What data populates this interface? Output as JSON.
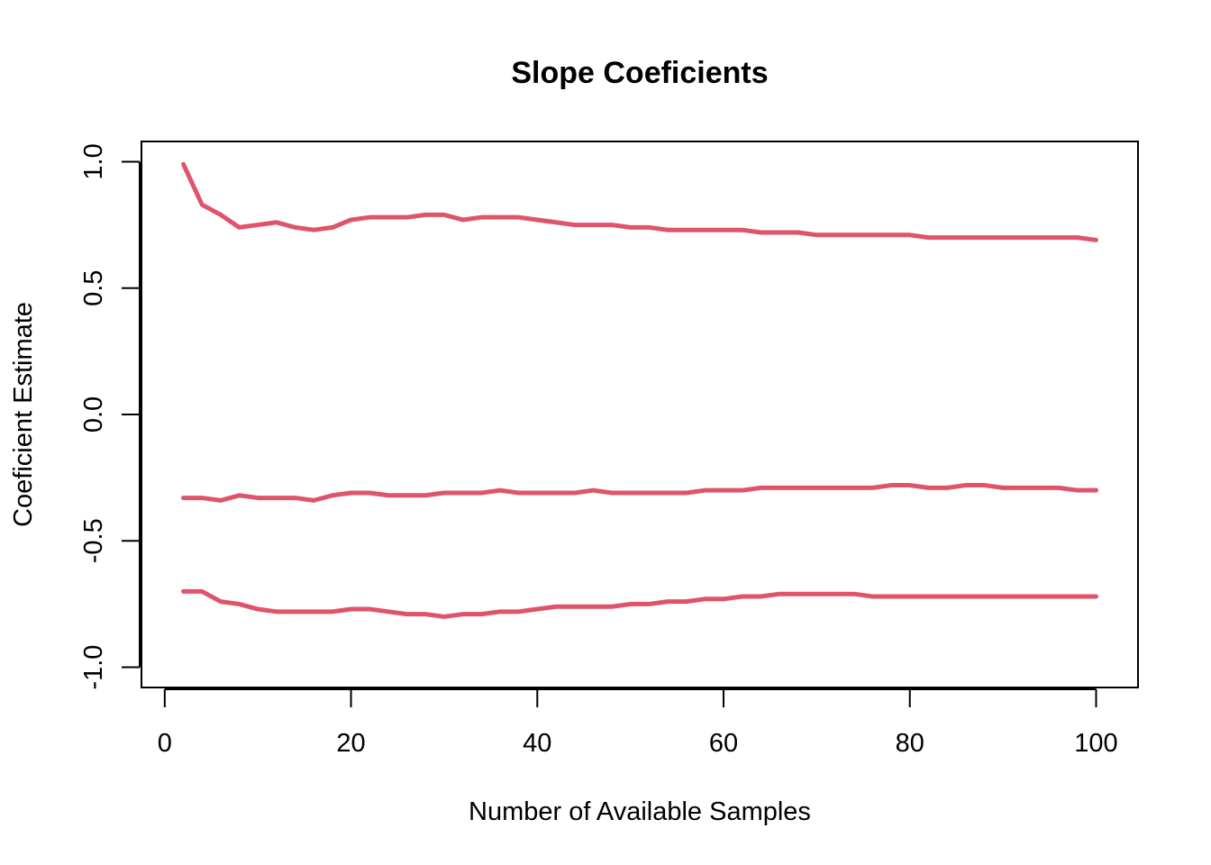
{
  "chart_data": {
    "type": "line",
    "title": "Slope Coeficients",
    "xlabel": "Number of Available Samples",
    "ylabel": "Coeficient Estimate",
    "xlim": [
      -2.5,
      104.5
    ],
    "ylim": [
      -1.08,
      1.08
    ],
    "x_ticks": [
      0,
      20,
      40,
      60,
      80,
      100
    ],
    "x_tick_labels": [
      "0",
      "20",
      "40",
      "60",
      "80",
      "100"
    ],
    "y_ticks": [
      -1.0,
      -0.5,
      0.0,
      0.5,
      1.0
    ],
    "y_tick_labels": [
      "-1.0",
      "-0.5",
      "0.0",
      "0.5",
      "1.0"
    ],
    "grid": false,
    "line_color": "#DF536B",
    "x": [
      2,
      4,
      6,
      8,
      10,
      12,
      14,
      16,
      18,
      20,
      22,
      24,
      26,
      28,
      30,
      32,
      34,
      36,
      38,
      40,
      42,
      44,
      46,
      48,
      50,
      52,
      54,
      56,
      58,
      60,
      62,
      64,
      66,
      68,
      70,
      72,
      74,
      76,
      78,
      80,
      82,
      84,
      86,
      88,
      90,
      92,
      94,
      96,
      98,
      100
    ],
    "series": [
      {
        "values": [
          0.99,
          0.83,
          0.79,
          0.74,
          0.75,
          0.76,
          0.74,
          0.73,
          0.74,
          0.77,
          0.78,
          0.78,
          0.78,
          0.79,
          0.79,
          0.77,
          0.78,
          0.78,
          0.78,
          0.77,
          0.76,
          0.75,
          0.75,
          0.75,
          0.74,
          0.74,
          0.73,
          0.73,
          0.73,
          0.73,
          0.73,
          0.72,
          0.72,
          0.72,
          0.71,
          0.71,
          0.71,
          0.71,
          0.71,
          0.71,
          0.7,
          0.7,
          0.7,
          0.7,
          0.7,
          0.7,
          0.7,
          0.7,
          0.7,
          0.69
        ]
      },
      {
        "values": [
          -0.33,
          -0.33,
          -0.34,
          -0.32,
          -0.33,
          -0.33,
          -0.33,
          -0.34,
          -0.32,
          -0.31,
          -0.31,
          -0.32,
          -0.32,
          -0.32,
          -0.31,
          -0.31,
          -0.31,
          -0.3,
          -0.31,
          -0.31,
          -0.31,
          -0.31,
          -0.3,
          -0.31,
          -0.31,
          -0.31,
          -0.31,
          -0.31,
          -0.3,
          -0.3,
          -0.3,
          -0.29,
          -0.29,
          -0.29,
          -0.29,
          -0.29,
          -0.29,
          -0.29,
          -0.28,
          -0.28,
          -0.29,
          -0.29,
          -0.28,
          -0.28,
          -0.29,
          -0.29,
          -0.29,
          -0.29,
          -0.3,
          -0.3
        ]
      },
      {
        "values": [
          -0.7,
          -0.7,
          -0.74,
          -0.75,
          -0.77,
          -0.78,
          -0.78,
          -0.78,
          -0.78,
          -0.77,
          -0.77,
          -0.78,
          -0.79,
          -0.79,
          -0.8,
          -0.79,
          -0.79,
          -0.78,
          -0.78,
          -0.77,
          -0.76,
          -0.76,
          -0.76,
          -0.76,
          -0.75,
          -0.75,
          -0.74,
          -0.74,
          -0.73,
          -0.73,
          -0.72,
          -0.72,
          -0.71,
          -0.71,
          -0.71,
          -0.71,
          -0.71,
          -0.72,
          -0.72,
          -0.72,
          -0.72,
          -0.72,
          -0.72,
          -0.72,
          -0.72,
          -0.72,
          -0.72,
          -0.72,
          -0.72,
          -0.72
        ]
      }
    ]
  }
}
